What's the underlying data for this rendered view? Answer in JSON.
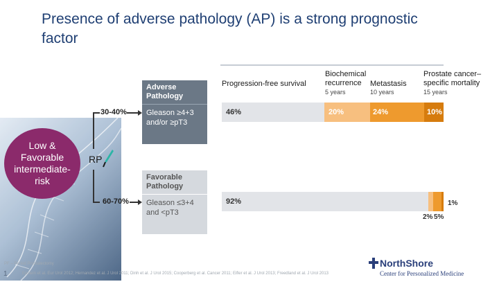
{
  "title": "Presence of adverse pathology (AP) is a strong prognostic factor",
  "columns": {
    "pfs": {
      "label": "Progression-free survival",
      "sub": ""
    },
    "bcr": {
      "label": "Biochemical\nrecurrence",
      "sub": "5 years"
    },
    "met": {
      "label": "Metastasis",
      "sub": "10 years"
    },
    "pcsm": {
      "label": "Prostate cancer–\nspecific mortality",
      "sub": "15 years"
    }
  },
  "risk_group": {
    "label": "Low &\nFavorable\nintermediate-\nrisk"
  },
  "treatment": {
    "label": "RP"
  },
  "branches": {
    "adverse": {
      "percent": "30-40%",
      "heading": "Adverse\nPathology",
      "criteria": "Gleason ≥4+3\nand/or ≥pT3",
      "pfs": "46%",
      "bcr": "20%",
      "met": "24%",
      "pcsm": "10%"
    },
    "favorable": {
      "percent": "60-70%",
      "heading": "Favorable\nPathology",
      "criteria": "Gleason ≤3+4\nand <pT3",
      "pfs": "92%",
      "bcr": "2%",
      "met": "5%",
      "pcsm": "1%"
    }
  },
  "colors": {
    "bcr": "#f7bf7f",
    "met": "#ee9a2e",
    "pcsm": "#d67c0e",
    "bar_bg": "#e2e4e8",
    "adverse_card": "#6b7886",
    "circle": "#8b2a6b",
    "title": "#1f3f73"
  },
  "footer": {
    "abbr": "PF – Period Prostatectomy",
    "refs": "Epstein et al. Eur Urol 2012; Hernandez et al. J Urol 2011; Dinh et al. J Urol 2015; Cooperberg et al. Cancer 2011; Eifler et al. J Urol 2013; Freedland et al. J Urol 2013",
    "page": "1"
  },
  "logo": {
    "name": "NorthShore",
    "subtitle": "Center for Personalized Medicine"
  }
}
